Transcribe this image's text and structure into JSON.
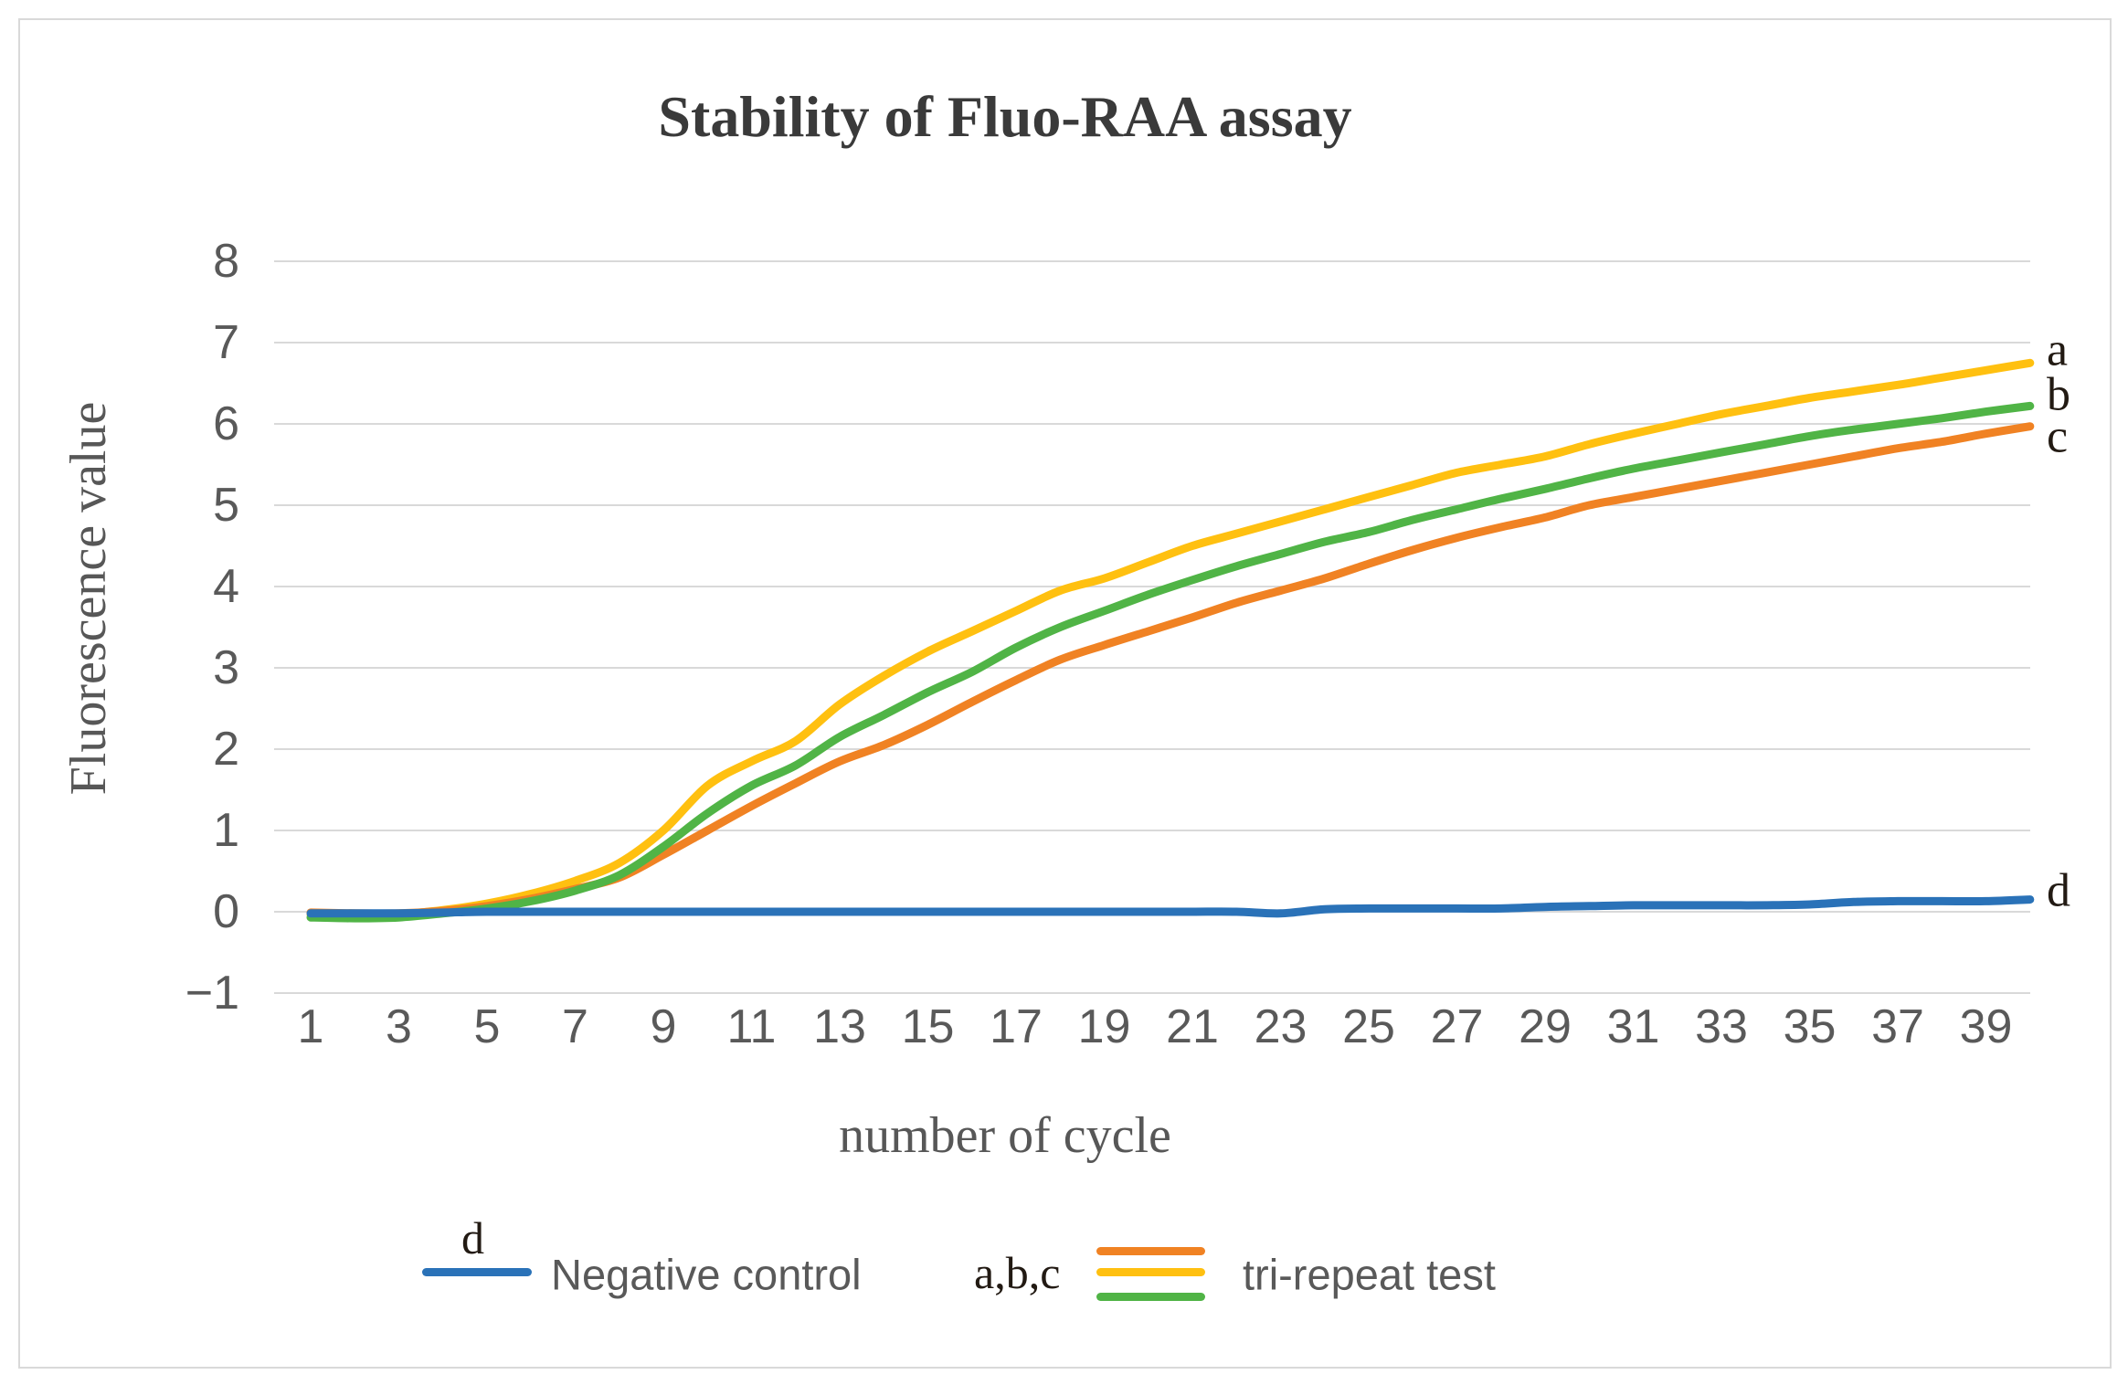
{
  "figure": {
    "background": "#ffffff",
    "border_color": "#d9d9d9",
    "text_gray": "#595959",
    "title_color": "#3a3a3a"
  },
  "chart_data": {
    "type": "line",
    "title": "Stability of Fluo-RAA assay",
    "xlabel": "number of cycle",
    "ylabel": "Fluorescence value",
    "x": [
      1,
      2,
      3,
      4,
      5,
      6,
      7,
      8,
      9,
      10,
      11,
      12,
      13,
      14,
      15,
      16,
      17,
      18,
      19,
      20,
      21,
      22,
      23,
      24,
      25,
      26,
      27,
      28,
      29,
      30,
      31,
      32,
      33,
      34,
      35,
      36,
      37,
      38,
      39,
      40
    ],
    "x_ticks": [
      1,
      3,
      5,
      7,
      9,
      11,
      13,
      15,
      17,
      19,
      21,
      23,
      25,
      27,
      29,
      31,
      33,
      35,
      37,
      39
    ],
    "xlim": [
      1,
      40
    ],
    "ylim": [
      -1,
      8
    ],
    "y_ticks": [
      8,
      7,
      6,
      5,
      4,
      3,
      2,
      1,
      0,
      -1
    ],
    "y_tick_labels": [
      "8",
      "7",
      "6",
      "5",
      "4",
      "3",
      "2",
      "1",
      "0",
      "−1"
    ],
    "grid": true,
    "gridline_color": "#d9d9d9",
    "legend_position": "bottom",
    "series": [
      {
        "name": "a",
        "legend_group": "tri-repeat test",
        "color": "#FFC010",
        "label_dy": -14,
        "values": [
          -0.03,
          -0.04,
          -0.03,
          0.02,
          0.1,
          0.22,
          0.38,
          0.6,
          1.0,
          1.55,
          1.85,
          2.1,
          2.55,
          2.9,
          3.2,
          3.45,
          3.7,
          3.95,
          4.1,
          4.3,
          4.5,
          4.65,
          4.8,
          4.95,
          5.1,
          5.25,
          5.4,
          5.5,
          5.6,
          5.75,
          5.88,
          6.0,
          6.12,
          6.22,
          6.32,
          6.4,
          6.48,
          6.57,
          6.66,
          6.75
        ]
      },
      {
        "name": "b",
        "legend_group": "tri-repeat test",
        "color": "#50B446",
        "label_dy": -12,
        "values": [
          -0.07,
          -0.08,
          -0.07,
          -0.02,
          0.04,
          0.13,
          0.26,
          0.45,
          0.8,
          1.21,
          1.55,
          1.8,
          2.15,
          2.42,
          2.7,
          2.95,
          3.25,
          3.5,
          3.7,
          3.9,
          4.08,
          4.25,
          4.4,
          4.55,
          4.67,
          4.82,
          4.95,
          5.08,
          5.2,
          5.33,
          5.45,
          5.55,
          5.65,
          5.75,
          5.85,
          5.93,
          6.0,
          6.07,
          6.15,
          6.22
        ]
      },
      {
        "name": "c",
        "legend_group": "tri-repeat test",
        "color": "#F08223",
        "label_dy": 11,
        "values": [
          -0.01,
          -0.02,
          -0.02,
          0.01,
          0.07,
          0.16,
          0.28,
          0.42,
          0.7,
          1.0,
          1.3,
          1.58,
          1.85,
          2.05,
          2.3,
          2.58,
          2.85,
          3.1,
          3.28,
          3.45,
          3.62,
          3.8,
          3.95,
          4.1,
          4.28,
          4.45,
          4.6,
          4.73,
          4.85,
          5.0,
          5.1,
          5.2,
          5.3,
          5.4,
          5.5,
          5.6,
          5.7,
          5.78,
          5.88,
          5.97
        ]
      },
      {
        "name": "d",
        "legend_group": "Negative control",
        "color": "#2A72B8",
        "label_dy": -10,
        "values": [
          -0.02,
          -0.02,
          -0.02,
          -0.01,
          0.0,
          0.0,
          0.0,
          0.0,
          0.0,
          0.0,
          0.0,
          0.0,
          0.0,
          0.0,
          0.0,
          0.0,
          0.0,
          0.0,
          0.0,
          0.0,
          0.0,
          0.0,
          -0.02,
          0.03,
          0.04,
          0.04,
          0.04,
          0.04,
          0.06,
          0.07,
          0.08,
          0.08,
          0.08,
          0.08,
          0.09,
          0.12,
          0.13,
          0.13,
          0.13,
          0.15
        ]
      }
    ]
  },
  "legend": {
    "items": [
      {
        "prefix": "d",
        "label": "Negative control",
        "colors": [
          "#2A72B8"
        ]
      },
      {
        "prefix": "a,b,c",
        "label": "tri-repeat test",
        "colors": [
          "#F08223",
          "#FFC010",
          "#50B446"
        ]
      }
    ]
  }
}
